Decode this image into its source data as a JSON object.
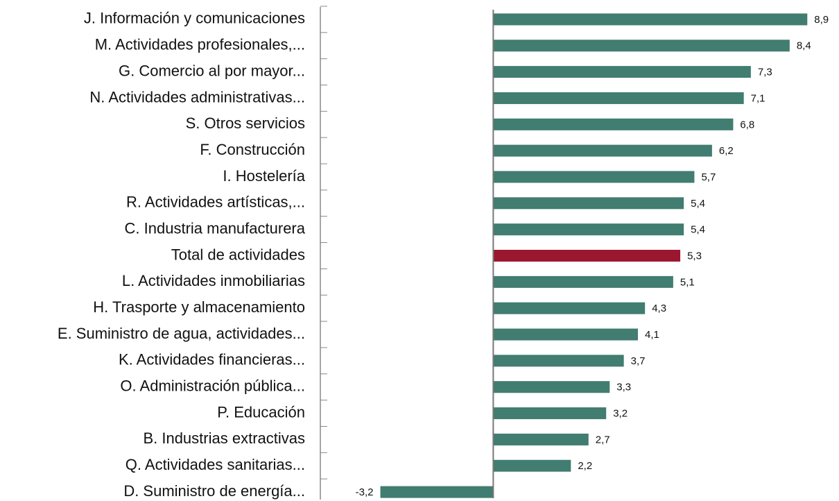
{
  "chart_data": {
    "type": "barh",
    "categories": [
      "J. Información y comunicaciones",
      "M. Actividades profesionales,...",
      "G. Comercio al por mayor...",
      "N. Actividades administrativas...",
      "S. Otros servicios",
      "F. Construcción",
      "I. Hostelería",
      "R. Actividades artísticas,...",
      "C. Industria manufacturera",
      "Total de actividades",
      "L. Actividades inmobiliarias",
      "H. Trasporte y almacenamiento",
      "E. Suministro de agua, actividades...",
      "K. Actividades financieras...",
      "O. Administración pública...",
      "P. Educación",
      "B. Industrias extractivas",
      "Q. Actividades sanitarias...",
      "D. Suministro de energía..."
    ],
    "values": [
      8.9,
      8.4,
      7.3,
      7.1,
      6.8,
      6.2,
      5.7,
      5.4,
      5.4,
      5.3,
      5.1,
      4.3,
      4.1,
      3.7,
      3.3,
      3.2,
      2.7,
      2.2,
      -3.2
    ],
    "value_labels": [
      "8,9",
      "8,4",
      "7,3",
      "7,1",
      "6,8",
      "6,2",
      "5,7",
      "5,4",
      "5,4",
      "5,3",
      "5,1",
      "4,3",
      "4,1",
      "3,7",
      "3,3",
      "3,2",
      "2,7",
      "2,2",
      "-3,2"
    ],
    "colors": [
      "#417d70",
      "#417d70",
      "#417d70",
      "#417d70",
      "#417d70",
      "#417d70",
      "#417d70",
      "#417d70",
      "#417d70",
      "#9b1730",
      "#417d70",
      "#417d70",
      "#417d70",
      "#417d70",
      "#417d70",
      "#417d70",
      "#417d70",
      "#417d70",
      "#417d70"
    ],
    "xlim": [
      -4.9,
      9.7
    ]
  }
}
